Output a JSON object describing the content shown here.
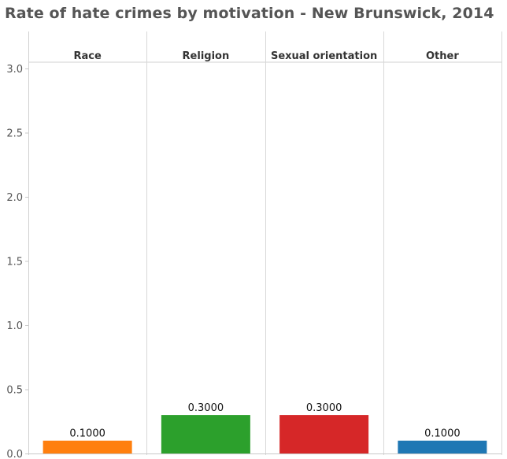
{
  "title": "Rate of hate crimes by motivation - New Brunswick, 2014",
  "chart_data": {
    "type": "bar",
    "title": "Rate of hate crimes by motivation - New Brunswick, 2014",
    "categories": [
      "Race",
      "Religion",
      "Sexual orientation",
      "Other"
    ],
    "values": [
      0.1,
      0.3,
      0.3,
      0.1
    ],
    "value_labels": [
      "0.1000",
      "0.3000",
      "0.3000",
      "0.1000"
    ],
    "colors": [
      "#ff7f0e",
      "#2ca02c",
      "#d62728",
      "#1f77b4"
    ],
    "y_ticks": [
      0.0,
      0.5,
      1.0,
      1.5,
      2.0,
      2.5,
      3.0
    ],
    "y_tick_labels": [
      "0.0",
      "0.5",
      "1.0",
      "1.5",
      "2.0",
      "2.5",
      "3.0"
    ],
    "ylim": [
      0,
      3.0
    ],
    "xlabel": "",
    "ylabel": "",
    "grid": false,
    "legend": "none"
  }
}
